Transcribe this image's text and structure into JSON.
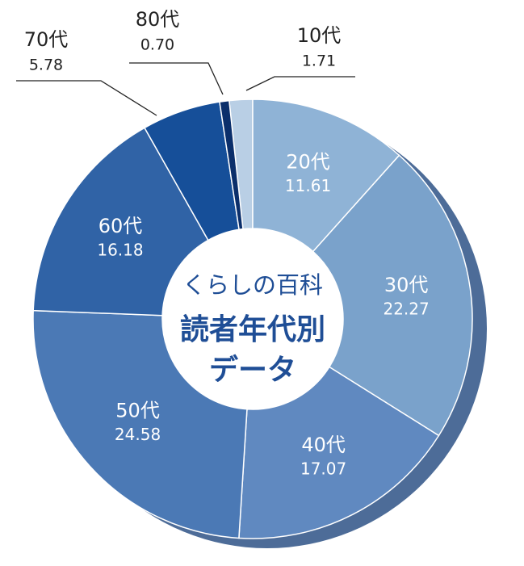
{
  "chart_data": {
    "type": "donut",
    "center_text": [
      "くらしの百科",
      "読者年代別",
      "データ"
    ],
    "categories": [
      "10代",
      "20代",
      "30代",
      "40代",
      "50代",
      "60代",
      "70代",
      "80代"
    ],
    "values": [
      1.71,
      11.61,
      22.27,
      17.07,
      24.58,
      16.18,
      5.78,
      0.7
    ],
    "value_labels": [
      "1.71",
      "11.61",
      "22.27",
      "17.07",
      "24.58",
      "16.18",
      "5.78",
      "0.70"
    ],
    "colors": [
      "#b9cfe5",
      "#8fb3d6",
      "#7aa2cb",
      "#6089c0",
      "#4b79b5",
      "#3063a6",
      "#164f99",
      "#0b2f6b"
    ]
  }
}
